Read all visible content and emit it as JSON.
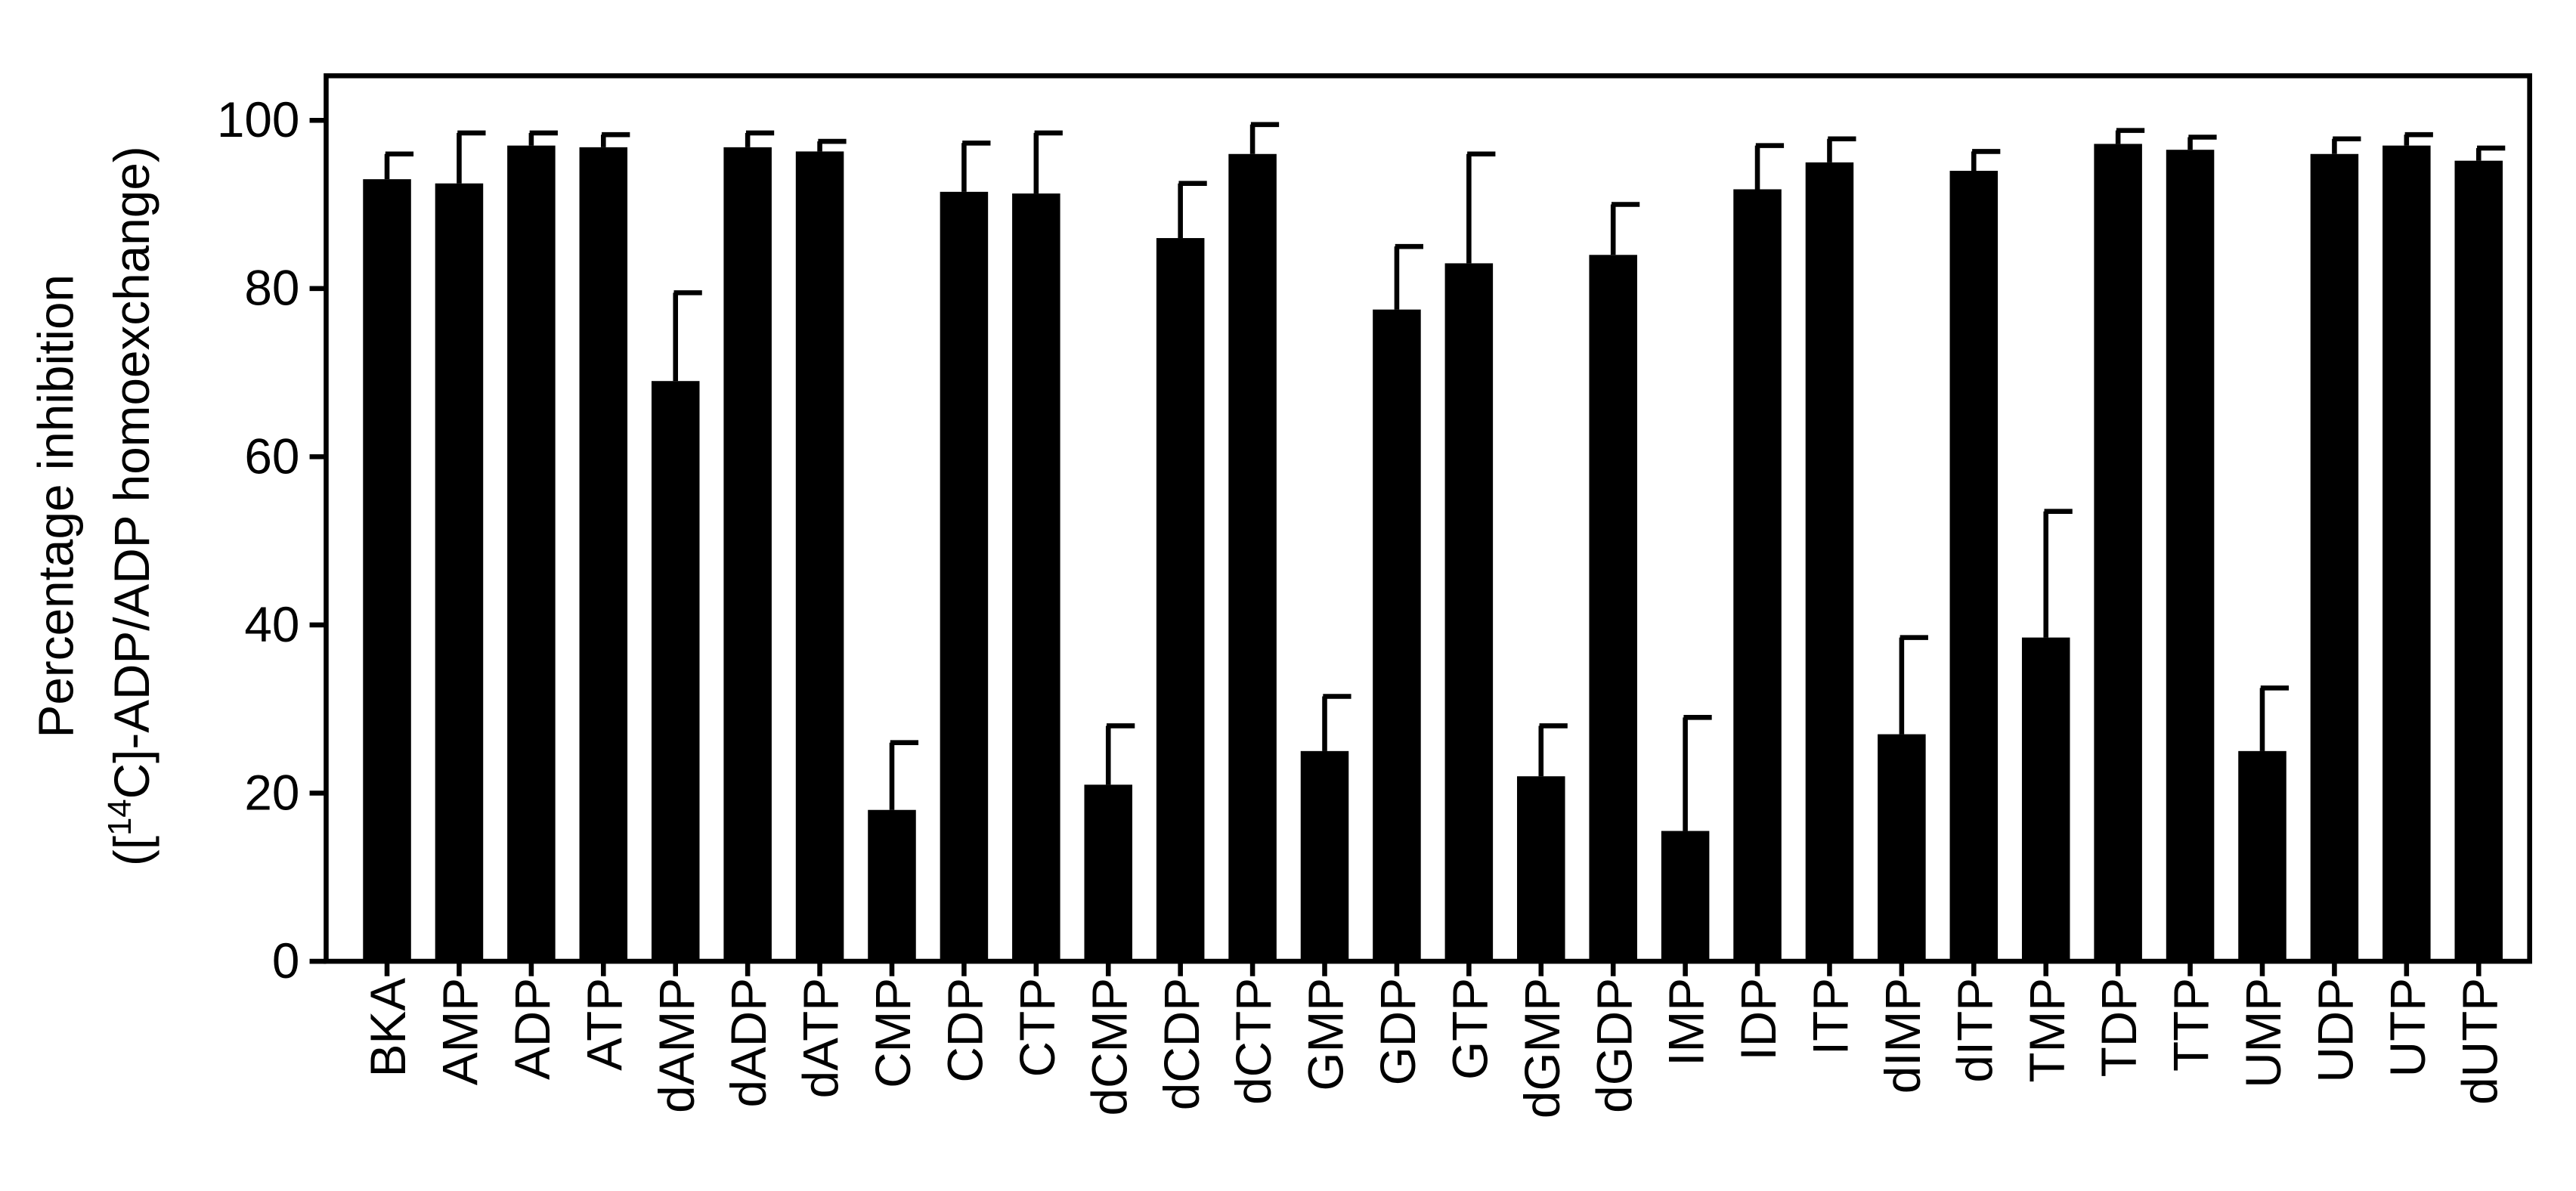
{
  "chart_data": {
    "type": "bar",
    "y_label": [
      "Percentage inhibition",
      [
        "([",
        "14",
        "C]-ADP/ADP homoexchange)"
      ]
    ],
    "categories": [
      "BKA",
      "AMP",
      "ADP",
      "ATP",
      "dAMP",
      "dADP",
      "dATP",
      "CMP",
      "CDP",
      "CTP",
      "dCMP",
      "dCDP",
      "dCTP",
      "GMP",
      "GDP",
      "GTP",
      "dGMP",
      "dGDP",
      "IMP",
      "IDP",
      "ITP",
      "dIMP",
      "dITP",
      "TMP",
      "TDP",
      "TTP",
      "UMP",
      "UDP",
      "UTP",
      "dUTP"
    ],
    "values": [
      93,
      92.5,
      97,
      96.8,
      69,
      96.8,
      96.3,
      18,
      91.5,
      91.3,
      21,
      86,
      96,
      25,
      77.5,
      83,
      22,
      84,
      15.5,
      91.8,
      95,
      27,
      94,
      38.5,
      97.2,
      96.5,
      25,
      96,
      97,
      95.2
    ],
    "errors": [
      3,
      6,
      1.5,
      1.5,
      10.5,
      1.7,
      1.2,
      8,
      5.8,
      7.2,
      7,
      6.5,
      3.5,
      6.5,
      7.5,
      13,
      6,
      6,
      13.5,
      5.2,
      2.8,
      11.5,
      2.3,
      15,
      1.6,
      1.5,
      7.5,
      1.8,
      1.3,
      1.5
    ],
    "color": "#000000",
    "ylim": [
      0,
      105.3
    ],
    "yticks": [
      0,
      20,
      40,
      60,
      80,
      100
    ]
  }
}
